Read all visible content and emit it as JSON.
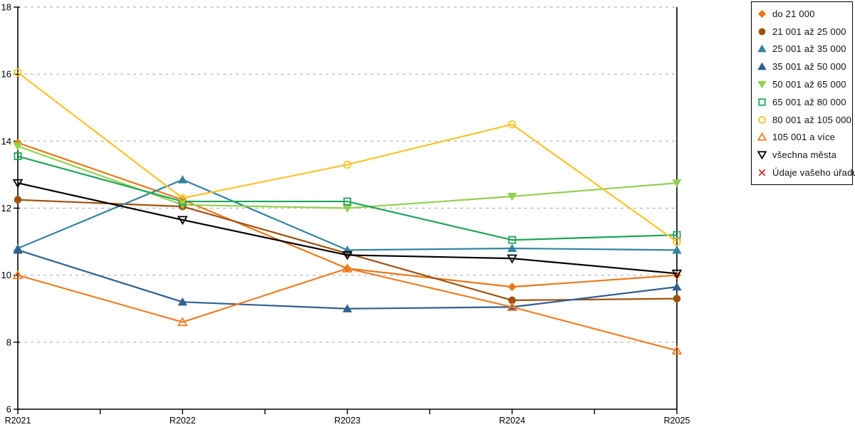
{
  "chart_data": {
    "type": "line",
    "title": "",
    "xlabel": "",
    "ylabel": "",
    "categories": [
      "R2021",
      "R2022",
      "R2023",
      "R2024",
      "R2025"
    ],
    "ylim": [
      6,
      18
    ],
    "ytick_step": 2,
    "grid": "dashed-horizontal",
    "x_minor_ticks": true,
    "legend_position": "top-right",
    "axis_color": "#000000",
    "grid_color": "#b3b3b3",
    "series": [
      {
        "name": "do 21 000",
        "color": "#E97817",
        "marker": "diamond",
        "fill": "solid",
        "values": [
          13.95,
          12.25,
          10.2,
          9.65,
          10.0
        ]
      },
      {
        "name": "21 001 až 25 000",
        "color": "#A0510F",
        "marker": "circle",
        "fill": "solid",
        "values": [
          12.25,
          12.05,
          10.65,
          9.25,
          9.3
        ]
      },
      {
        "name": "25 001 až 35 000",
        "color": "#35849E",
        "marker": "triangle-up",
        "fill": "solid",
        "values": [
          10.8,
          12.85,
          10.75,
          10.8,
          10.75
        ]
      },
      {
        "name": "35 001 až 50 000",
        "color": "#31608F",
        "marker": "triangle-up",
        "fill": "solid",
        "values": [
          10.75,
          9.2,
          9.0,
          9.05,
          9.65
        ]
      },
      {
        "name": "50 001 až 65 000",
        "color": "#92D050",
        "marker": "triangle-down",
        "fill": "solid",
        "values": [
          13.85,
          12.1,
          12.0,
          12.35,
          12.75
        ]
      },
      {
        "name": "65 001 až 80 000",
        "color": "#1FA55A",
        "marker": "square",
        "fill": "hollow",
        "values": [
          13.55,
          12.2,
          12.2,
          11.05,
          11.2
        ]
      },
      {
        "name": "80 001 až 105 000",
        "color": "#F9C32D",
        "marker": "circle",
        "fill": "hollow",
        "values": [
          16.05,
          12.3,
          13.3,
          14.5,
          11.0
        ]
      },
      {
        "name": "105 001 a více",
        "color": "#F07D26",
        "marker": "triangle-up",
        "fill": "hollow",
        "values": [
          10.0,
          8.6,
          10.2,
          9.05,
          7.75
        ]
      },
      {
        "name": "všechna města",
        "color": "#000000",
        "marker": "triangle-down",
        "fill": "hollow",
        "values": [
          12.75,
          11.65,
          10.6,
          10.5,
          10.05
        ]
      },
      {
        "name": "Údaje vašeho úřadu",
        "color": "#C52F2F",
        "marker": "x",
        "fill": "hollow",
        "values": [
          null,
          null,
          null,
          null,
          null
        ]
      }
    ]
  }
}
